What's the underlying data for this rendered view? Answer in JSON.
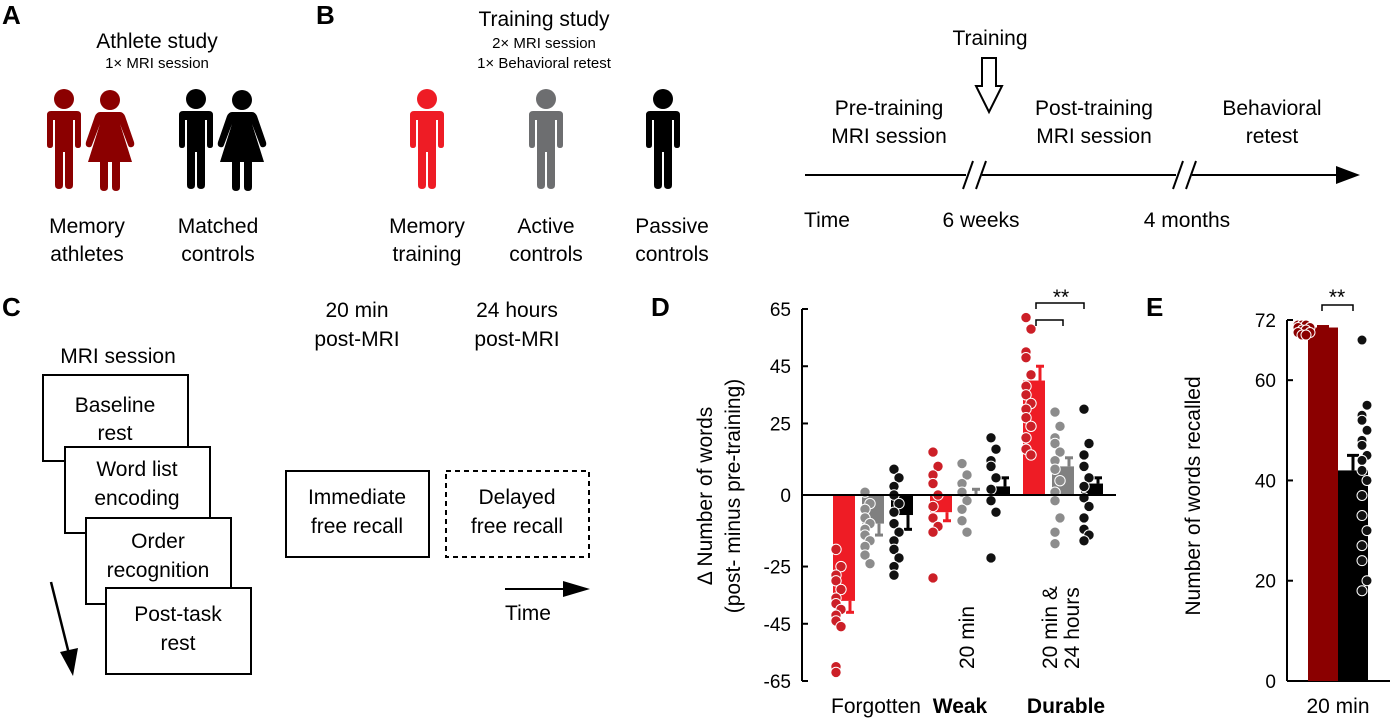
{
  "panels": {
    "A": {
      "letter": "A",
      "title": "Athlete study",
      "subtitle": "1× MRI session",
      "groups": [
        {
          "line1": "Memory",
          "line2": "athletes",
          "color": "#8b0000"
        },
        {
          "line1": "Matched",
          "line2": "controls",
          "color": "#000000"
        }
      ]
    },
    "B": {
      "letter": "B",
      "title": "Training study",
      "subtitle1": "2× MRI session",
      "subtitle2": "1× Behavioral retest",
      "groups": [
        {
          "line1": "Memory",
          "line2": "training",
          "color": "#ee1c25"
        },
        {
          "line1": "Active",
          "line2": "controls",
          "color": "#6d6e70"
        },
        {
          "line1": "Passive",
          "line2": "controls",
          "color": "#000000"
        }
      ],
      "timeline": {
        "training_label": "Training",
        "phase1_line1": "Pre-training",
        "phase1_line2": "MRI session",
        "phase2_line1": "Post-training",
        "phase2_line2": "MRI session",
        "phase3_line1": "Behavioral",
        "phase3_line2": "retest",
        "time_label": "Time",
        "gap1_label": "6 weeks",
        "gap2_label": "4 months"
      }
    },
    "C": {
      "letter": "C",
      "session_title": "MRI session",
      "cards": [
        {
          "line1": "Baseline",
          "line2": "rest"
        },
        {
          "line1": "Word list",
          "line2": "encoding"
        },
        {
          "line1": "Order",
          "line2": "recognition"
        },
        {
          "line1": "Post-task",
          "line2": "rest"
        }
      ],
      "recall": [
        {
          "time1": "20 min",
          "time2": "post-MRI",
          "line1": "Immediate",
          "line2": "free recall"
        },
        {
          "time1": "24 hours",
          "time2": "post-MRI",
          "line1": "Delayed",
          "line2": "free recall"
        }
      ],
      "time_label": "Time"
    },
    "D": {
      "letter": "D"
    },
    "E": {
      "letter": "E"
    }
  },
  "chart_data": [
    {
      "type": "bar",
      "panel": "D",
      "ylabel_line1": "Δ Number of words",
      "ylabel_line2": "(post- minus pre-training)",
      "ylim": [
        -65,
        65
      ],
      "yticks": [
        65,
        45,
        25,
        0,
        -25,
        -45,
        -65
      ],
      "categories": [
        "Forgotten",
        "Weak",
        "Durable"
      ],
      "bold_categories": [
        "Weak",
        "Durable"
      ],
      "category_notes": [
        {
          "category": "Weak",
          "lines": [
            "20 min"
          ]
        },
        {
          "category": "Durable",
          "lines": [
            "20 min &",
            "24 hours"
          ]
        }
      ],
      "series": [
        {
          "color": "#ee1c25",
          "dot_color": "#cc1f27",
          "values": [
            -37,
            -6,
            40
          ],
          "errors": [
            4,
            3,
            5
          ],
          "points": [
            [
              -19,
              -25,
              -28,
              -30,
              -33,
              -36,
              -38,
              -40,
              -42,
              -44,
              -46,
              -60,
              -62
            ],
            [
              15,
              10,
              7,
              4,
              0,
              -4,
              -8,
              -11,
              -13,
              -29
            ],
            [
              62,
              58,
              50,
              48,
              42,
              38,
              35,
              32,
              30,
              27,
              24,
              20,
              16,
              14
            ]
          ]
        },
        {
          "color": "#808080",
          "dot_color": "#8c8c8c",
          "values": [
            -10,
            0,
            10
          ],
          "errors": [
            4,
            2,
            3
          ],
          "points": [
            [
              1,
              -3,
              -5,
              -8,
              -10,
              -12,
              -14,
              -16,
              -18,
              -21,
              -24
            ],
            [
              11,
              7,
              4,
              1,
              -2,
              -5,
              -9,
              -13
            ],
            [
              29,
              24,
              20,
              18,
              15,
              12,
              9,
              5,
              1,
              -2,
              -8,
              -13,
              -17
            ]
          ]
        },
        {
          "color": "#000000",
          "dot_color": "#111111",
          "values": [
            -7,
            3,
            4
          ],
          "errors": [
            5,
            3,
            2
          ],
          "points": [
            [
              9,
              6,
              3,
              0,
              -3,
              -6,
              -10,
              -13,
              -16,
              -19,
              -22,
              -25,
              -28
            ],
            [
              20,
              16,
              12,
              10,
              6,
              2,
              -2,
              -6,
              -22
            ],
            [
              30,
              18,
              14,
              10,
              6,
              3,
              -1,
              -4,
              -8,
              -12,
              -14,
              -16
            ]
          ]
        }
      ],
      "significance": {
        "label": "**"
      }
    },
    {
      "type": "bar",
      "panel": "E",
      "ylabel": "Number of words recalled",
      "ylim": [
        0,
        72
      ],
      "yticks": [
        72,
        60,
        40,
        20,
        0
      ],
      "categories": [
        "20 min"
      ],
      "series": [
        {
          "color": "#8b0000",
          "values": [
            70.5
          ],
          "errors": [
            0.2
          ],
          "points": [
            71,
            71,
            71,
            70.5,
            70.5,
            70,
            70,
            69.5,
            69.5,
            69,
            69
          ]
        },
        {
          "color": "#000000",
          "values": [
            42
          ],
          "errors": [
            3
          ],
          "points": [
            68,
            55,
            53,
            52,
            50,
            48,
            47,
            45,
            44,
            42,
            40,
            37,
            33,
            30,
            27,
            24,
            20,
            18
          ]
        }
      ],
      "significance": {
        "label": "**"
      }
    }
  ]
}
